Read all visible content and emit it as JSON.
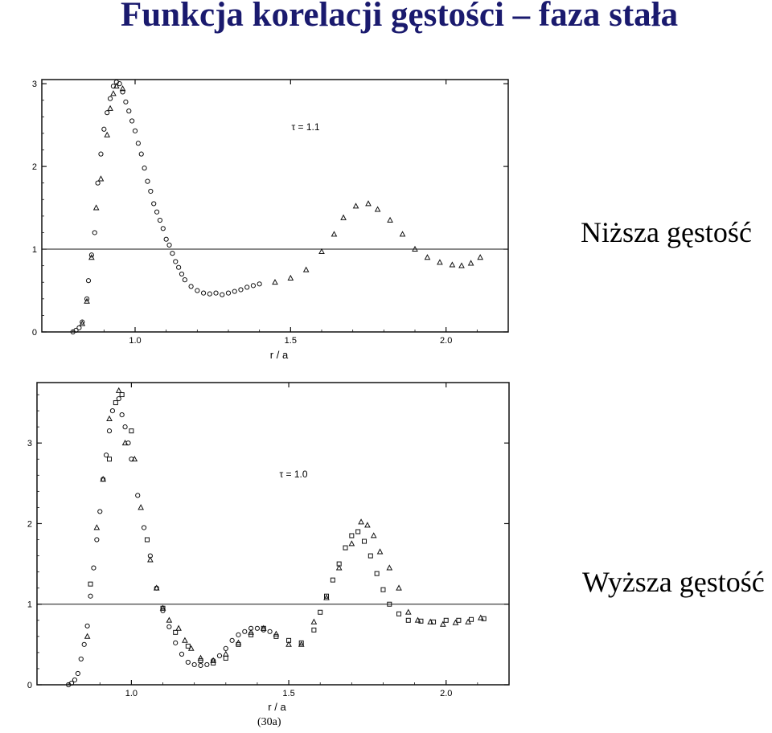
{
  "title": "Funkcja korelacji gęstości – faza stała",
  "caption": "(30a)",
  "chart_data": [
    {
      "type": "scatter",
      "side_label": "Niższa gęstość",
      "annotation": "τ = 1.1",
      "xlabel": "r / a",
      "ylabel": "",
      "xlim": [
        0.7,
        2.2
      ],
      "ylim": [
        0,
        3.05
      ],
      "x_ticks": [
        1.0,
        1.5,
        2.0
      ],
      "x_tick_labels": [
        "1.0",
        "1.5",
        "2.0"
      ],
      "y_ticks": [
        0,
        1,
        2,
        3
      ],
      "y_tick_labels": [
        "0",
        "1",
        "2",
        "3"
      ],
      "reference_line": 1,
      "grid": false,
      "series": [
        {
          "marker": "circle",
          "x": [
            0.8,
            0.81,
            0.82,
            0.83,
            0.845,
            0.85,
            0.86,
            0.87,
            0.88,
            0.89,
            0.9,
            0.91,
            0.92,
            0.93,
            0.94,
            0.95,
            0.96,
            0.97,
            0.98,
            0.99,
            1.0,
            1.01,
            1.02,
            1.03,
            1.04,
            1.05,
            1.06,
            1.07,
            1.08,
            1.09,
            1.1,
            1.11,
            1.12,
            1.13,
            1.14,
            1.15,
            1.16,
            1.18,
            1.2,
            1.22,
            1.24,
            1.26,
            1.28,
            1.3,
            1.32,
            1.34,
            1.36,
            1.38,
            1.4
          ],
          "y": [
            0.0,
            0.02,
            0.05,
            0.12,
            0.4,
            0.62,
            0.93,
            1.2,
            1.8,
            2.15,
            2.45,
            2.65,
            2.82,
            2.97,
            3.02,
            3.0,
            2.9,
            2.78,
            2.67,
            2.55,
            2.43,
            2.28,
            2.15,
            1.98,
            1.82,
            1.7,
            1.55,
            1.45,
            1.35,
            1.25,
            1.12,
            1.05,
            0.95,
            0.85,
            0.78,
            0.7,
            0.63,
            0.55,
            0.5,
            0.47,
            0.46,
            0.47,
            0.45,
            0.47,
            0.49,
            0.51,
            0.54,
            0.56,
            0.58
          ]
        },
        {
          "marker": "triangle",
          "x": [
            0.83,
            0.845,
            0.86,
            0.875,
            0.89,
            0.91,
            0.92,
            0.93,
            0.94,
            0.96,
            1.45,
            1.5,
            1.55,
            1.6,
            1.64,
            1.67,
            1.71,
            1.75,
            1.78,
            1.82,
            1.86,
            1.9,
            1.94,
            1.98,
            2.02,
            2.05,
            2.08,
            2.11
          ],
          "y": [
            0.1,
            0.37,
            0.9,
            1.5,
            1.85,
            2.38,
            2.7,
            2.88,
            2.97,
            2.94,
            0.6,
            0.65,
            0.75,
            0.97,
            1.18,
            1.38,
            1.52,
            1.55,
            1.48,
            1.35,
            1.18,
            1.0,
            0.9,
            0.84,
            0.81,
            0.8,
            0.83,
            0.9
          ]
        }
      ]
    },
    {
      "type": "scatter",
      "side_label": "Wyższa gęstość",
      "annotation": "τ = 1.0",
      "xlabel": "r / a",
      "ylabel": "",
      "xlim": [
        0.7,
        2.2
      ],
      "ylim": [
        0,
        3.75
      ],
      "x_ticks": [
        1.0,
        1.5,
        2.0
      ],
      "x_tick_labels": [
        "1.0",
        "1.5",
        "2.0"
      ],
      "y_ticks": [
        0,
        1,
        2,
        3
      ],
      "y_tick_labels": [
        "0",
        "1",
        "2",
        "3"
      ],
      "reference_line": 1,
      "grid": false,
      "series": [
        {
          "marker": "circle",
          "x": [
            0.8,
            0.81,
            0.82,
            0.83,
            0.84,
            0.85,
            0.86,
            0.87,
            0.88,
            0.89,
            0.9,
            0.91,
            0.92,
            0.93,
            0.94,
            0.96,
            0.97,
            0.98,
            0.99,
            1.0,
            1.02,
            1.04,
            1.06,
            1.08,
            1.1,
            1.12,
            1.14,
            1.16,
            1.18,
            1.2,
            1.22,
            1.24,
            1.26,
            1.28,
            1.3,
            1.32,
            1.34,
            1.36,
            1.38,
            1.4,
            1.42,
            1.44
          ],
          "y": [
            0.0,
            0.02,
            0.06,
            0.14,
            0.32,
            0.5,
            0.73,
            1.1,
            1.45,
            1.8,
            2.15,
            2.55,
            2.85,
            3.15,
            3.4,
            3.55,
            3.35,
            3.2,
            3.0,
            2.8,
            2.35,
            1.95,
            1.6,
            1.2,
            0.92,
            0.72,
            0.52,
            0.38,
            0.28,
            0.25,
            0.24,
            0.25,
            0.3,
            0.36,
            0.45,
            0.55,
            0.62,
            0.66,
            0.7,
            0.7,
            0.68,
            0.66
          ]
        },
        {
          "marker": "square",
          "x": [
            0.87,
            0.93,
            0.95,
            0.97,
            1.0,
            1.05,
            1.1,
            1.14,
            1.18,
            1.22,
            1.26,
            1.3,
            1.34,
            1.38,
            1.42,
            1.46,
            1.5,
            1.54,
            1.58,
            1.6,
            1.62,
            1.64,
            1.66,
            1.68,
            1.7,
            1.72,
            1.74,
            1.76,
            1.78,
            1.8,
            1.82,
            1.85,
            1.88,
            1.92,
            1.96,
            2.0,
            2.04,
            2.08,
            2.12
          ],
          "y": [
            1.25,
            2.8,
            3.5,
            3.6,
            3.15,
            1.8,
            0.95,
            0.65,
            0.48,
            0.3,
            0.27,
            0.33,
            0.5,
            0.62,
            0.7,
            0.6,
            0.55,
            0.52,
            0.68,
            0.9,
            1.1,
            1.3,
            1.5,
            1.7,
            1.85,
            1.9,
            1.78,
            1.6,
            1.38,
            1.18,
            1.0,
            0.88,
            0.8,
            0.79,
            0.78,
            0.8,
            0.8,
            0.81,
            0.82
          ]
        },
        {
          "marker": "triangle",
          "x": [
            0.86,
            0.89,
            0.91,
            0.93,
            0.96,
            0.98,
            1.01,
            1.03,
            1.06,
            1.08,
            1.1,
            1.12,
            1.15,
            1.17,
            1.19,
            1.22,
            1.26,
            1.3,
            1.34,
            1.38,
            1.42,
            1.46,
            1.5,
            1.54,
            1.58,
            1.62,
            1.66,
            1.7,
            1.73,
            1.75,
            1.77,
            1.79,
            1.82,
            1.85,
            1.88,
            1.91,
            1.95,
            1.99,
            2.03,
            2.07,
            2.11
          ],
          "y": [
            0.6,
            1.95,
            2.55,
            3.3,
            3.65,
            3.0,
            2.8,
            2.2,
            1.55,
            1.2,
            0.95,
            0.8,
            0.7,
            0.55,
            0.45,
            0.33,
            0.3,
            0.38,
            0.52,
            0.65,
            0.7,
            0.63,
            0.5,
            0.5,
            0.78,
            1.08,
            1.45,
            1.75,
            2.02,
            1.98,
            1.85,
            1.65,
            1.45,
            1.2,
            0.9,
            0.8,
            0.78,
            0.75,
            0.77,
            0.78,
            0.83
          ]
        }
      ]
    }
  ]
}
